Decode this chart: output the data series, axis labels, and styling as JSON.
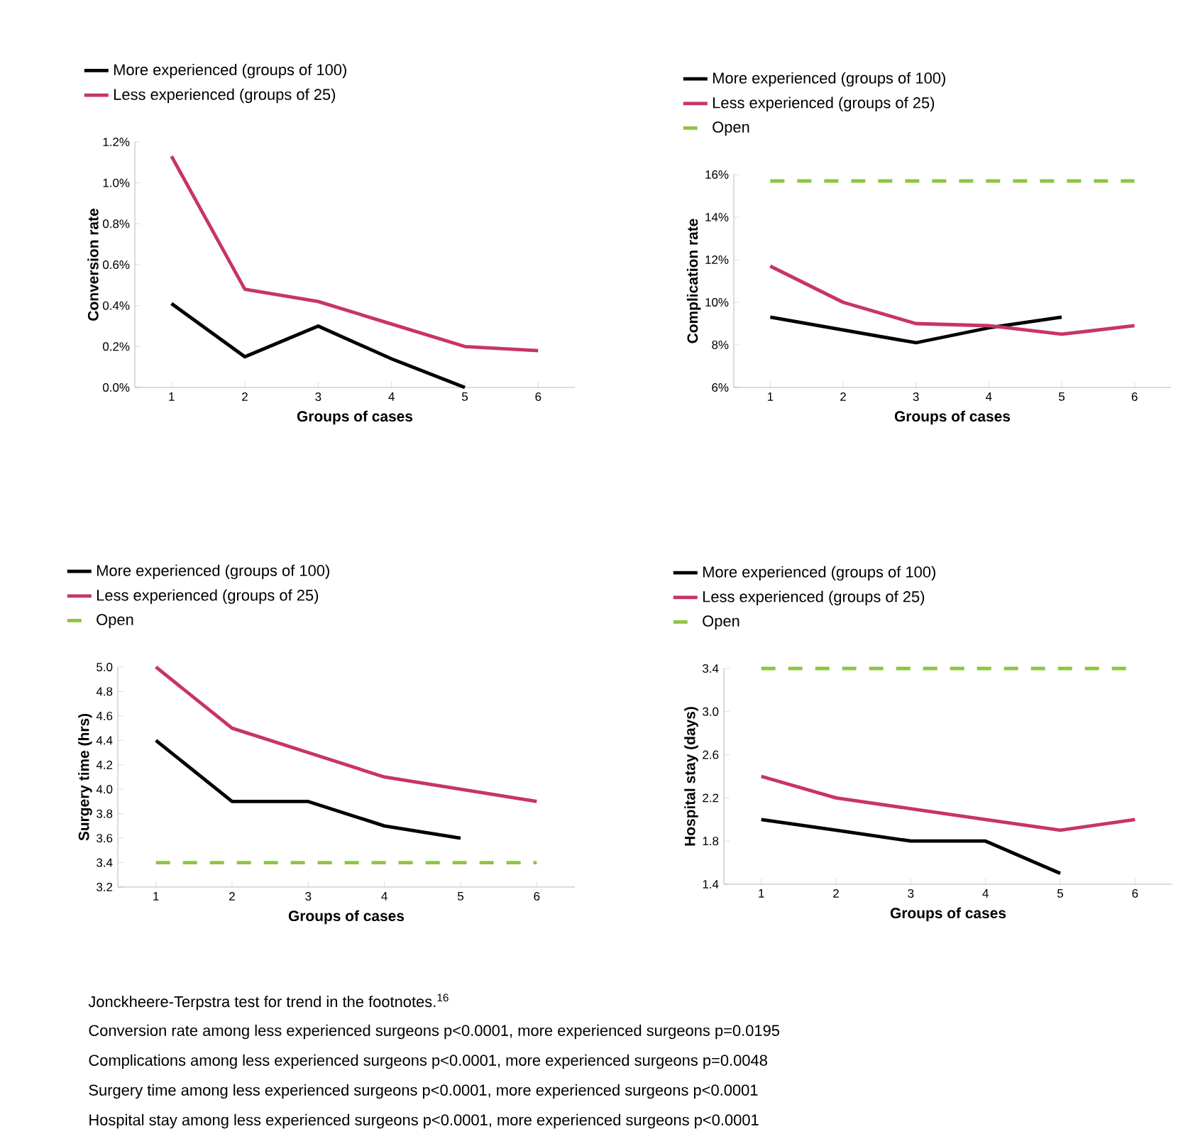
{
  "chart_data": [
    {
      "type": "line",
      "categories": [
        "1",
        "2",
        "3",
        "4",
        "5",
        "6"
      ],
      "xlabel": "Groups of cases",
      "ylabel": "Conversion rate",
      "ylim": [
        0,
        1.2
      ],
      "yticks": [
        {
          "value": 0,
          "label": "0.0%"
        },
        {
          "value": 0.2,
          "label": "0.2%"
        },
        {
          "value": 0.4,
          "label": "0.4%"
        },
        {
          "value": 0.6,
          "label": "0.6%"
        },
        {
          "value": 0.8,
          "label": "0.8%"
        },
        {
          "value": 1.0,
          "label": "1.0%"
        },
        {
          "value": 1.2,
          "label": "1.2%"
        }
      ],
      "legend": "top left",
      "series": [
        {
          "name": "More experienced (groups of 100)",
          "color": "#000000",
          "values": [
            0.41,
            0.15,
            0.3,
            0.14,
            0.0,
            null
          ]
        },
        {
          "name": "Less experienced (groups of 25)",
          "color": "#c8336a",
          "values": [
            1.13,
            0.48,
            0.42,
            0.31,
            0.2,
            0.18
          ]
        }
      ]
    },
    {
      "type": "line",
      "categories": [
        "1",
        "2",
        "3",
        "4",
        "5",
        "6"
      ],
      "xlabel": "Groups of cases",
      "ylabel": "Complication rate",
      "ylim": [
        6,
        16
      ],
      "yticks": [
        {
          "value": 6,
          "label": "6%"
        },
        {
          "value": 8,
          "label": "8%"
        },
        {
          "value": 10,
          "label": "10%"
        },
        {
          "value": 12,
          "label": "12%"
        },
        {
          "value": 14,
          "label": "14%"
        },
        {
          "value": 16,
          "label": "16%"
        }
      ],
      "legend": "top left",
      "series": [
        {
          "name": "More experienced (groups of 100)",
          "color": "#000000",
          "values": [
            9.3,
            8.7,
            8.1,
            8.8,
            9.3,
            null
          ]
        },
        {
          "name": "Less experienced (groups of 25)",
          "color": "#c8336a",
          "values": [
            11.7,
            10.0,
            9.0,
            8.9,
            8.5,
            8.9
          ]
        },
        {
          "name": "Open",
          "color": "#8cc63f",
          "line_style": "dashed",
          "values": [
            15.7,
            15.7,
            15.7,
            15.7,
            15.7,
            15.7
          ]
        }
      ]
    },
    {
      "type": "line",
      "categories": [
        "1",
        "2",
        "3",
        "4",
        "5",
        "6"
      ],
      "xlabel": "Groups of cases",
      "ylabel": "Surgery time (hrs)",
      "ylim": [
        3.2,
        5.0
      ],
      "yticks": [
        {
          "value": 3.2,
          "label": "3.2"
        },
        {
          "value": 3.4,
          "label": "3.4"
        },
        {
          "value": 3.6,
          "label": "3.6"
        },
        {
          "value": 3.8,
          "label": "3.8"
        },
        {
          "value": 4.0,
          "label": "4.0"
        },
        {
          "value": 4.2,
          "label": "4.2"
        },
        {
          "value": 4.4,
          "label": "4.4"
        },
        {
          "value": 4.6,
          "label": "4.6"
        },
        {
          "value": 4.8,
          "label": "4.8"
        },
        {
          "value": 5.0,
          "label": "5.0"
        }
      ],
      "legend": "top left",
      "series": [
        {
          "name": "More experienced (groups of 100)",
          "color": "#000000",
          "values": [
            4.4,
            3.9,
            3.9,
            3.7,
            3.6,
            null
          ]
        },
        {
          "name": "Less experienced (groups of 25)",
          "color": "#c8336a",
          "values": [
            5.0,
            4.5,
            4.3,
            4.1,
            4.0,
            3.9
          ]
        },
        {
          "name": "Open",
          "color": "#8cc63f",
          "line_style": "dashed",
          "values": [
            3.4,
            3.4,
            3.4,
            3.4,
            3.4,
            3.4
          ]
        }
      ]
    },
    {
      "type": "line",
      "categories": [
        "1",
        "2",
        "3",
        "4",
        "5",
        "6"
      ],
      "xlabel": "Groups of cases",
      "ylabel": "Hospital stay (days)",
      "ylim": [
        1.4,
        3.4
      ],
      "yticks": [
        {
          "value": 1.4,
          "label": "1.4"
        },
        {
          "value": 1.8,
          "label": "1.8"
        },
        {
          "value": 2.2,
          "label": "2.2"
        },
        {
          "value": 2.6,
          "label": "2.6"
        },
        {
          "value": 3.0,
          "label": "3.0"
        },
        {
          "value": 3.4,
          "label": "3.4"
        }
      ],
      "legend": "top left",
      "series": [
        {
          "name": "More experienced (groups of 100)",
          "color": "#000000",
          "values": [
            2.0,
            1.9,
            1.8,
            1.8,
            1.5,
            null
          ]
        },
        {
          "name": "Less experienced (groups of 25)",
          "color": "#c8336a",
          "values": [
            2.4,
            2.2,
            2.1,
            2.0,
            1.9,
            2.0
          ]
        },
        {
          "name": "Open",
          "color": "#8cc63f",
          "line_style": "dashed",
          "values": [
            3.4,
            3.4,
            3.4,
            3.4,
            3.4,
            3.4
          ]
        }
      ],
      "annotations": [
        "Jonckheere-Terpstra test for trend in the footnotes.$^{16}$",
        "Conversion rate among less experienced surgeons p<0.0001, more experienced surgeons p=0.0195",
        "Complications among less experienced surgeons p<0.0001,  more experienced surgeons p=0.0048",
        "Surgery time among less experienced surgeons p<0.0001,  more experienced surgeons p<0.0001",
        "Hospital stay among less experienced surgeons p<0.0001,  more experienced surgeons p<0.0001"
      ]
    }
  ]
}
